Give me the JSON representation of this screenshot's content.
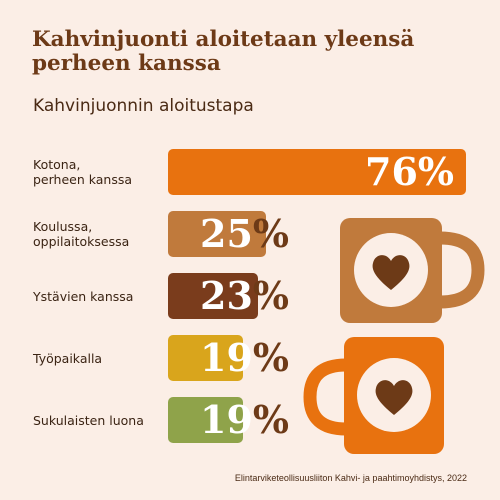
{
  "header": {
    "title": "Kahvinjuonti aloitetaan yleensä perheen kanssa",
    "subtitle": "Kahvinjuonnin aloitustapa"
  },
  "source": "Elintarviketeollisuusliiton Kahvi- ja paahtimoyhdistys, 2022",
  "colors": {
    "background": "#fbeee6",
    "title": "#6d3a17",
    "mug_upper": "#c07a3c",
    "mug_lower": "#e8720f",
    "heart": "#6d3a17"
  },
  "icons": [
    "coffee-mug-icon",
    "heart-icon"
  ],
  "chart_data": {
    "type": "bar",
    "orientation": "horizontal",
    "title": "Kahvinjuonti aloitetaan yleensä perheen kanssa",
    "subtitle": "Kahvinjuonnin aloitustapa",
    "unit": "%",
    "categories": [
      "Kotona,\nperheen kanssa",
      "Koulussa,\noppilaitoksessa",
      "Ystävien kanssa",
      "Työpaikalla",
      "Sukulaisten luona"
    ],
    "values": [
      76,
      25,
      23,
      19,
      19
    ],
    "value_labels": [
      "76%",
      "25%",
      "23%",
      "19%",
      "19%"
    ],
    "bar_colors": [
      "#e8720f",
      "#c07a3c",
      "#7a3c1c",
      "#d9a51c",
      "#8fa34a"
    ],
    "xlim": [
      0,
      76
    ],
    "grid": false,
    "legend": "none"
  }
}
